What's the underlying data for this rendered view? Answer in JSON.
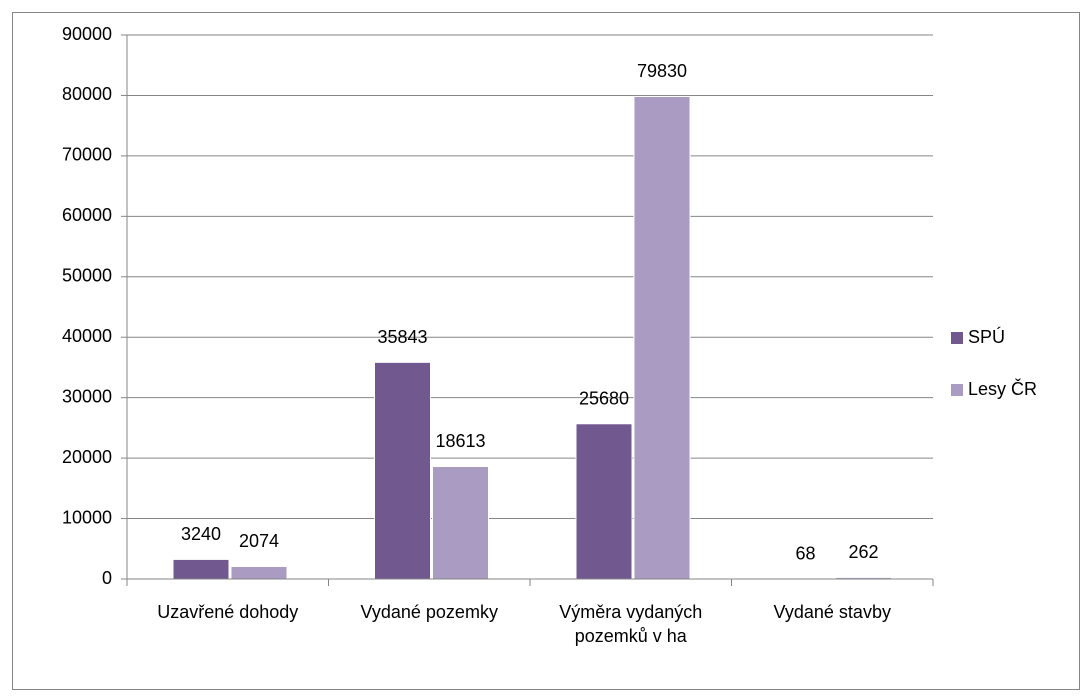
{
  "chart_data": {
    "type": "bar",
    "categories": [
      "Uzavřené dohody",
      "Vydané pozemky",
      "Výměra vydaných pozemků v ha",
      "Vydané stavby"
    ],
    "series": [
      {
        "name": "SPÚ",
        "color": "#71588f",
        "values": [
          3240,
          35843,
          25680,
          68
        ]
      },
      {
        "name": "Lesy ČR",
        "color": "#a99bc1",
        "values": [
          2074,
          18613,
          79830,
          262
        ]
      }
    ],
    "ylim": [
      0,
      90000
    ],
    "yticks": [
      0,
      10000,
      20000,
      30000,
      40000,
      50000,
      60000,
      70000,
      80000,
      90000
    ],
    "grid": true,
    "legend": "right"
  }
}
